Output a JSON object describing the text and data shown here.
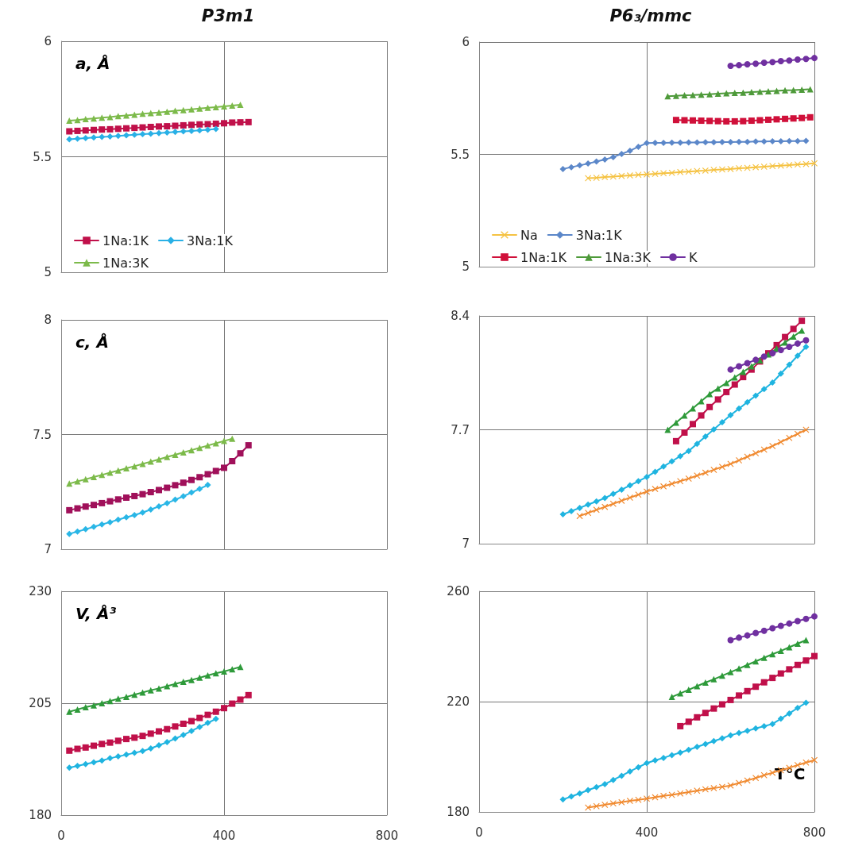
{
  "chart_data": [
    {
      "type": "line",
      "title": "P3m1",
      "annotations": [
        "a, Å"
      ],
      "xlim": [
        0,
        800
      ],
      "xticks": [
        0,
        400,
        800
      ],
      "ylim": [
        5,
        6
      ],
      "yticks": [
        5,
        5.5,
        6
      ],
      "grid": true,
      "legend": "bottom left",
      "tick_labels": "y",
      "series": [
        {
          "name": "1Na:1K",
          "color": "#c0104a",
          "marker": "square",
          "x": [
            20,
            40,
            60,
            80,
            100,
            120,
            140,
            160,
            180,
            200,
            220,
            240,
            260,
            280,
            300,
            320,
            340,
            360,
            380,
            400,
            420,
            440,
            460
          ],
          "values": [
            5.61,
            5.612,
            5.614,
            5.616,
            5.618,
            5.619,
            5.621,
            5.623,
            5.625,
            5.627,
            5.629,
            5.631,
            5.632,
            5.634,
            5.636,
            5.638,
            5.64,
            5.641,
            5.643,
            5.645,
            5.648,
            5.649,
            5.65
          ]
        },
        {
          "name": "3Na:1K",
          "color": "#29b0e6",
          "marker": "diamond",
          "x": [
            20,
            40,
            60,
            80,
            100,
            120,
            140,
            160,
            180,
            200,
            220,
            240,
            260,
            280,
            300,
            320,
            340,
            360,
            380
          ],
          "values": [
            5.576,
            5.578,
            5.581,
            5.583,
            5.586,
            5.588,
            5.59,
            5.593,
            5.595,
            5.598,
            5.6,
            5.602,
            5.605,
            5.607,
            5.61,
            5.612,
            5.614,
            5.617,
            5.62
          ]
        },
        {
          "name": "1Na:3K",
          "color": "#7cba4a",
          "marker": "triangle",
          "x": [
            20,
            40,
            60,
            80,
            100,
            120,
            140,
            160,
            180,
            200,
            220,
            240,
            260,
            280,
            300,
            320,
            340,
            360,
            380,
            400,
            420,
            440
          ],
          "values": [
            5.656,
            5.659,
            5.663,
            5.666,
            5.669,
            5.672,
            5.676,
            5.679,
            5.682,
            5.686,
            5.689,
            5.692,
            5.695,
            5.699,
            5.702,
            5.705,
            5.709,
            5.712,
            5.715,
            5.718,
            5.722,
            5.725
          ]
        }
      ]
    },
    {
      "type": "line",
      "title": "P6₃/mmc",
      "xlim": [
        0,
        800
      ],
      "xticks": [
        0,
        400,
        800
      ],
      "ylim": [
        5,
        6
      ],
      "yticks": [
        5,
        5.5,
        6
      ],
      "grid": true,
      "legend": "bottom left",
      "tick_labels": "y",
      "series": [
        {
          "name": "Na",
          "color": "#f5c242",
          "marker": "cross",
          "x": [
            260,
            280,
            300,
            320,
            340,
            360,
            380,
            400,
            420,
            440,
            460,
            480,
            500,
            520,
            540,
            560,
            580,
            600,
            620,
            640,
            660,
            680,
            700,
            720,
            740,
            760,
            780,
            800
          ],
          "values": [
            5.394,
            5.396,
            5.399,
            5.401,
            5.404,
            5.406,
            5.409,
            5.411,
            5.413,
            5.416,
            5.418,
            5.421,
            5.423,
            5.426,
            5.428,
            5.431,
            5.433,
            5.435,
            5.438,
            5.44,
            5.443,
            5.445,
            5.448,
            5.45,
            5.452,
            5.455,
            5.457,
            5.46
          ]
        },
        {
          "name": "3Na:1K",
          "color": "#5b87c9",
          "marker": "diamond",
          "x": [
            200,
            220,
            240,
            260,
            280,
            300,
            320,
            340,
            360,
            380,
            400,
            420,
            440,
            460,
            480,
            500,
            520,
            540,
            560,
            580,
            600,
            620,
            640,
            660,
            680,
            700,
            720,
            740,
            760,
            780
          ],
          "values": [
            5.435,
            5.443,
            5.451,
            5.459,
            5.468,
            5.477,
            5.488,
            5.502,
            5.516,
            5.534,
            5.55,
            5.551,
            5.551,
            5.552,
            5.552,
            5.553,
            5.553,
            5.554,
            5.554,
            5.555,
            5.555,
            5.556,
            5.556,
            5.557,
            5.557,
            5.558,
            5.558,
            5.559,
            5.559,
            5.56
          ]
        },
        {
          "name": "1Na:1K",
          "color": "#d0103a",
          "marker": "square",
          "x": [
            470,
            490,
            510,
            530,
            550,
            570,
            590,
            610,
            630,
            650,
            670,
            690,
            710,
            730,
            750,
            770,
            790
          ],
          "values": [
            5.653,
            5.652,
            5.651,
            5.65,
            5.649,
            5.648,
            5.647,
            5.647,
            5.648,
            5.65,
            5.652,
            5.654,
            5.656,
            5.658,
            5.66,
            5.662,
            5.665
          ]
        },
        {
          "name": "1Na:3K",
          "color": "#4e9a3a",
          "marker": "triangle",
          "x": [
            450,
            470,
            490,
            510,
            530,
            550,
            570,
            590,
            610,
            630,
            650,
            670,
            690,
            710,
            730,
            750,
            770,
            790
          ],
          "values": [
            5.759,
            5.761,
            5.763,
            5.764,
            5.766,
            5.768,
            5.77,
            5.772,
            5.774,
            5.775,
            5.777,
            5.779,
            5.781,
            5.783,
            5.785,
            5.786,
            5.788,
            5.79
          ]
        },
        {
          "name": "K",
          "color": "#7030a0",
          "marker": "circle",
          "x": [
            600,
            620,
            640,
            660,
            680,
            700,
            720,
            740,
            760,
            780,
            800
          ],
          "values": [
            5.894,
            5.897,
            5.901,
            5.904,
            5.908,
            5.911,
            5.915,
            5.918,
            5.922,
            5.925,
            5.929
          ]
        }
      ]
    },
    {
      "type": "line",
      "annotations": [
        "c, Å"
      ],
      "xlim": [
        0,
        800
      ],
      "xticks": [
        0,
        400,
        800
      ],
      "ylim": [
        7,
        8
      ],
      "yticks": [
        7,
        7.5,
        8
      ],
      "grid": true,
      "tick_labels": "y",
      "series": [
        {
          "color": "#7cba4a",
          "marker": "triangle",
          "x": [
            20,
            40,
            60,
            80,
            100,
            120,
            140,
            160,
            180,
            200,
            220,
            240,
            260,
            280,
            300,
            320,
            340,
            360,
            380,
            400,
            420
          ],
          "values": [
            7.286,
            7.296,
            7.305,
            7.315,
            7.324,
            7.334,
            7.343,
            7.353,
            7.362,
            7.372,
            7.382,
            7.392,
            7.402,
            7.412,
            7.422,
            7.432,
            7.442,
            7.452,
            7.462,
            7.472,
            7.482
          ]
        },
        {
          "color": "#a0105a",
          "marker": "square",
          "x": [
            20,
            40,
            60,
            80,
            100,
            120,
            140,
            160,
            180,
            200,
            220,
            240,
            260,
            280,
            300,
            320,
            340,
            360,
            380,
            400,
            420,
            440,
            460
          ],
          "values": [
            7.17,
            7.178,
            7.186,
            7.193,
            7.201,
            7.209,
            7.217,
            7.225,
            7.232,
            7.24,
            7.249,
            7.258,
            7.268,
            7.279,
            7.29,
            7.302,
            7.314,
            7.327,
            7.341,
            7.355,
            7.384,
            7.418,
            7.453
          ]
        },
        {
          "color": "#29b6e6",
          "marker": "diamond",
          "x": [
            20,
            40,
            60,
            80,
            100,
            120,
            140,
            160,
            180,
            200,
            220,
            240,
            260,
            280,
            300,
            320,
            340,
            360
          ],
          "values": [
            7.067,
            7.077,
            7.087,
            7.098,
            7.108,
            7.118,
            7.129,
            7.139,
            7.149,
            7.16,
            7.173,
            7.187,
            7.201,
            7.216,
            7.231,
            7.247,
            7.263,
            7.28
          ]
        }
      ]
    },
    {
      "type": "line",
      "xlim": [
        0,
        800
      ],
      "xticks": [
        0,
        400,
        800
      ],
      "ylim": [
        7,
        8.4
      ],
      "yticks": [
        7,
        7.7,
        8.4
      ],
      "grid": true,
      "tick_labels": "y",
      "series": [
        {
          "color": "#f08a30",
          "marker": "cross",
          "x": [
            240,
            260,
            280,
            300,
            320,
            340,
            360,
            380,
            400,
            420,
            440,
            460,
            480,
            500,
            520,
            540,
            560,
            580,
            600,
            620,
            640,
            660,
            680,
            700,
            720,
            740,
            760,
            780
          ],
          "values": [
            7.17,
            7.189,
            7.208,
            7.226,
            7.245,
            7.264,
            7.283,
            7.301,
            7.32,
            7.336,
            7.352,
            7.368,
            7.384,
            7.4,
            7.418,
            7.436,
            7.454,
            7.472,
            7.49,
            7.512,
            7.534,
            7.556,
            7.578,
            7.6,
            7.625,
            7.65,
            7.675,
            7.7
          ]
        },
        {
          "color": "#1fb4e0",
          "marker": "diamond",
          "x": [
            200,
            220,
            240,
            260,
            280,
            300,
            320,
            340,
            360,
            380,
            400,
            420,
            440,
            460,
            480,
            500,
            520,
            540,
            560,
            580,
            600,
            620,
            640,
            660,
            680,
            700,
            720,
            740,
            760,
            780
          ],
          "values": [
            7.18,
            7.2,
            7.22,
            7.24,
            7.26,
            7.28,
            7.306,
            7.332,
            7.358,
            7.384,
            7.41,
            7.442,
            7.474,
            7.506,
            7.538,
            7.57,
            7.614,
            7.658,
            7.702,
            7.746,
            7.79,
            7.83,
            7.87,
            7.91,
            7.95,
            7.99,
            8.045,
            8.1,
            8.155,
            8.21
          ]
        },
        {
          "color": "#c0104a",
          "marker": "square",
          "x": [
            470,
            490,
            510,
            530,
            550,
            570,
            590,
            610,
            630,
            650,
            670,
            690,
            710,
            730,
            750,
            770
          ],
          "values": [
            7.63,
            7.683,
            7.735,
            7.788,
            7.84,
            7.886,
            7.932,
            7.978,
            8.024,
            8.07,
            8.12,
            8.17,
            8.22,
            8.27,
            8.32,
            8.37
          ]
        },
        {
          "color": "#2e9a3a",
          "marker": "triangle",
          "x": [
            450,
            470,
            490,
            510,
            530,
            550,
            570,
            590,
            610,
            630,
            650,
            670,
            690,
            710,
            730,
            750,
            770
          ],
          "values": [
            7.7,
            7.744,
            7.788,
            7.832,
            7.876,
            7.92,
            7.954,
            7.988,
            8.022,
            8.056,
            8.09,
            8.127,
            8.163,
            8.2,
            8.237,
            8.273,
            8.31
          ]
        },
        {
          "color": "#7030a0",
          "marker": "circle",
          "x": [
            600,
            620,
            640,
            660,
            680,
            700,
            720,
            740,
            760,
            780
          ],
          "values": [
            8.07,
            8.09,
            8.11,
            8.13,
            8.15,
            8.17,
            8.19,
            8.21,
            8.23,
            8.25
          ]
        }
      ]
    },
    {
      "type": "line",
      "annotations": [
        "V, Å³"
      ],
      "xlim": [
        0,
        800
      ],
      "xticks": [
        0,
        400,
        800
      ],
      "ylim": [
        180,
        230
      ],
      "yticks": [
        180,
        205,
        230
      ],
      "grid": true,
      "series": [
        {
          "color": "#2e9a3a",
          "marker": "triangle",
          "x": [
            20,
            40,
            60,
            80,
            100,
            120,
            140,
            160,
            180,
            200,
            220,
            240,
            260,
            280,
            300,
            320,
            340,
            360,
            380,
            400,
            420,
            440
          ],
          "values": [
            203.1,
            203.6,
            204.1,
            204.5,
            205.0,
            205.5,
            206.0,
            206.4,
            206.9,
            207.4,
            207.9,
            208.3,
            208.8,
            209.3,
            209.8,
            210.2,
            210.7,
            211.2,
            211.7,
            212.1,
            212.6,
            213.1
          ]
        },
        {
          "color": "#c0104a",
          "marker": "square",
          "x": [
            20,
            40,
            60,
            80,
            100,
            120,
            140,
            160,
            180,
            200,
            220,
            240,
            260,
            280,
            300,
            320,
            340,
            360,
            380,
            400,
            420,
            440,
            460
          ],
          "values": [
            194.4,
            194.8,
            195.1,
            195.5,
            195.9,
            196.2,
            196.6,
            197.0,
            197.3,
            197.7,
            198.2,
            198.7,
            199.2,
            199.8,
            200.4,
            201.0,
            201.7,
            202.4,
            203.1,
            203.9,
            204.9,
            205.8,
            206.8
          ]
        },
        {
          "color": "#1fb4e0",
          "marker": "diamond",
          "x": [
            20,
            40,
            60,
            80,
            100,
            120,
            140,
            160,
            180,
            200,
            220,
            240,
            260,
            280,
            300,
            320,
            340,
            360,
            380
          ],
          "values": [
            190.6,
            191.0,
            191.4,
            191.8,
            192.2,
            192.7,
            193.1,
            193.5,
            193.9,
            194.3,
            194.9,
            195.6,
            196.3,
            197.1,
            197.9,
            198.8,
            199.7,
            200.6,
            201.5
          ]
        }
      ]
    },
    {
      "type": "line",
      "xlabel": "T°C",
      "xlim": [
        0,
        800
      ],
      "xticks": [
        0,
        400,
        800
      ],
      "ylim": [
        180,
        260
      ],
      "yticks": [
        180,
        220,
        260
      ],
      "grid": true,
      "series": [
        {
          "color": "#f08a30",
          "marker": "cross",
          "x": [
            260,
            280,
            300,
            320,
            340,
            360,
            380,
            400,
            420,
            440,
            460,
            480,
            500,
            520,
            540,
            560,
            580,
            600,
            620,
            640,
            660,
            680,
            700,
            720,
            740,
            760,
            780,
            800
          ],
          "values": [
            181.6,
            182.1,
            182.6,
            183.1,
            183.5,
            184.0,
            184.4,
            184.8,
            185.3,
            185.8,
            186.2,
            186.7,
            187.2,
            187.7,
            188.2,
            188.6,
            189.1,
            189.6,
            190.5,
            191.4,
            192.3,
            193.3,
            194.2,
            195.1,
            196.0,
            197.0,
            197.9,
            198.8
          ]
        },
        {
          "color": "#1fb4e0",
          "marker": "diamond",
          "x": [
            200,
            220,
            240,
            260,
            280,
            300,
            320,
            340,
            360,
            380,
            400,
            420,
            440,
            460,
            480,
            500,
            520,
            540,
            560,
            580,
            600,
            620,
            640,
            660,
            680,
            700,
            720,
            740,
            760,
            780
          ],
          "values": [
            184.5,
            185.6,
            186.7,
            187.9,
            189.0,
            190.1,
            191.6,
            193.1,
            194.7,
            196.2,
            197.7,
            198.7,
            199.6,
            200.6,
            201.5,
            202.5,
            203.6,
            204.6,
            205.7,
            206.7,
            207.8,
            208.6,
            209.4,
            210.3,
            211.1,
            211.9,
            213.8,
            215.7,
            217.7,
            219.6
          ]
        },
        {
          "color": "#c0104a",
          "marker": "square",
          "x": [
            480,
            500,
            520,
            540,
            560,
            580,
            600,
            620,
            640,
            660,
            680,
            700,
            720,
            740,
            760,
            780,
            800
          ],
          "values": [
            211.1,
            212.7,
            214.3,
            215.9,
            217.5,
            219.0,
            220.6,
            222.2,
            223.8,
            225.4,
            227.0,
            228.6,
            230.2,
            231.7,
            233.3,
            234.9,
            236.5
          ]
        },
        {
          "color": "#2e9a3a",
          "marker": "triangle",
          "x": [
            460,
            480,
            500,
            520,
            540,
            560,
            580,
            600,
            620,
            640,
            660,
            680,
            700,
            720,
            740,
            760,
            780
          ],
          "values": [
            221.7,
            223.0,
            224.3,
            225.6,
            226.9,
            228.1,
            229.4,
            230.7,
            232.0,
            233.3,
            234.6,
            235.9,
            237.2,
            238.4,
            239.7,
            241.0,
            242.3
          ]
        },
        {
          "color": "#7030a0",
          "marker": "circle",
          "x": [
            600,
            620,
            640,
            660,
            680,
            700,
            720,
            740,
            760,
            780,
            800
          ],
          "values": [
            242.3,
            243.2,
            244.0,
            244.9,
            245.7,
            246.6,
            247.5,
            248.3,
            249.2,
            250.0,
            250.9
          ]
        }
      ]
    }
  ]
}
